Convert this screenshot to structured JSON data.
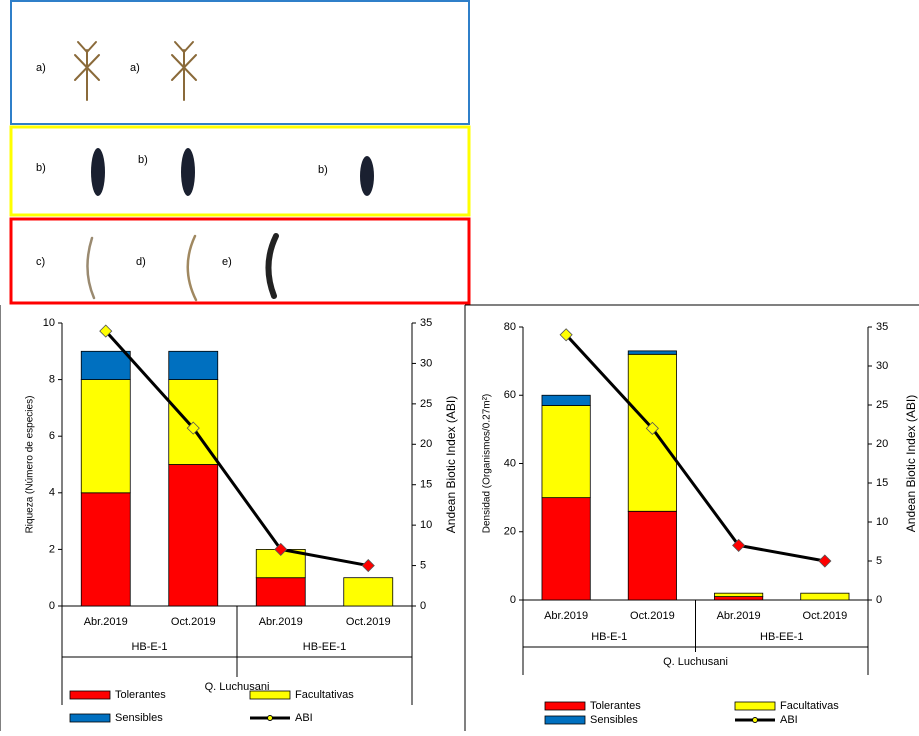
{
  "panels": [
    {
      "labels": [
        "a)",
        "a)"
      ]
    },
    {
      "labels": [
        "b)",
        "b)",
        "b)"
      ]
    },
    {
      "labels": [
        "c)",
        "d)",
        "e)"
      ]
    }
  ],
  "chart_data": [
    {
      "type": "bar",
      "stacked": true,
      "ylabel": "Riqueza (Número de especies)",
      "y2label": "Andean Biotic Index (ABI)",
      "categories": [
        "Abr.2019",
        "Oct.2019",
        "Abr.2019",
        "Oct.2019"
      ],
      "group_labels": [
        "HB-E-1",
        "HB-EE-1"
      ],
      "site_label": "Q. Luchusani",
      "ylim": [
        0,
        10
      ],
      "yticks": [
        0,
        2,
        4,
        6,
        8,
        10
      ],
      "y2lim": [
        0,
        35
      ],
      "y2ticks": [
        0,
        5,
        10,
        15,
        20,
        25,
        30,
        35
      ],
      "series": [
        {
          "name": "Tolerantes",
          "color": "#ff0000",
          "values": [
            4,
            5,
            1,
            0
          ]
        },
        {
          "name": "Facultativas",
          "color": "#ffff00",
          "values": [
            4,
            3,
            1,
            1
          ]
        },
        {
          "name": "Sensibles",
          "color": "#0070c0",
          "values": [
            1,
            1,
            0,
            0
          ]
        },
        {
          "name": "ABI",
          "type": "line",
          "axis": "y2",
          "color": "#000000",
          "marker_colors": [
            "#ffff00",
            "#ffff00",
            "#ff0000",
            "#ff0000"
          ],
          "values": [
            34,
            22,
            7,
            5
          ]
        }
      ]
    },
    {
      "type": "bar",
      "stacked": true,
      "ylabel": "Densidad (Organismos/0.27m²)",
      "y2label": "Andean Biotic Index (ABI)",
      "categories": [
        "Abr.2019",
        "Oct.2019",
        "Abr.2019",
        "Oct.2019"
      ],
      "group_labels": [
        "HB-E-1",
        "HB-EE-1"
      ],
      "site_label": "Q. Luchusani",
      "ylim": [
        0,
        80
      ],
      "yticks": [
        0,
        20,
        40,
        60,
        80
      ],
      "y2lim": [
        0,
        35
      ],
      "y2ticks": [
        0,
        5,
        10,
        15,
        20,
        25,
        30,
        35
      ],
      "series": [
        {
          "name": "Tolerantes",
          "color": "#ff0000",
          "values": [
            30,
            26,
            1,
            0
          ]
        },
        {
          "name": "Facultativas",
          "color": "#ffff00",
          "values": [
            27,
            46,
            1,
            2
          ]
        },
        {
          "name": "Sensibles",
          "color": "#0070c0",
          "values": [
            3,
            1,
            0,
            0
          ]
        },
        {
          "name": "ABI",
          "type": "line",
          "axis": "y2",
          "color": "#000000",
          "marker_colors": [
            "#ffff00",
            "#ffff00",
            "#ff0000",
            "#ff0000"
          ],
          "values": [
            34,
            22,
            7,
            5
          ]
        }
      ]
    }
  ]
}
